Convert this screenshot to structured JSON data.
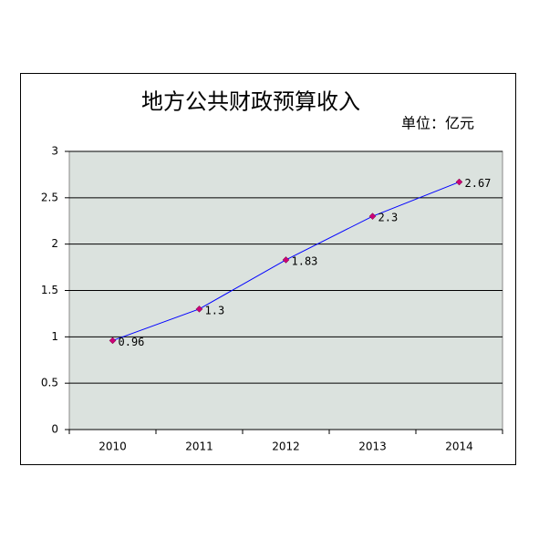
{
  "chart_data": {
    "type": "line",
    "title": "地方公共财政预算收入",
    "subtitle": "单位：亿元",
    "categories": [
      "2010",
      "2011",
      "2012",
      "2013",
      "2014"
    ],
    "series": [
      {
        "color": "#0000ff",
        "marker_color": "#cc0077",
        "values": [
          0.96,
          1.3,
          1.83,
          2.3,
          2.67
        ]
      }
    ],
    "ylim": [
      0,
      3
    ],
    "yticks": [
      0,
      0.5,
      1,
      1.5,
      2,
      2.5,
      3
    ],
    "grid": true
  }
}
